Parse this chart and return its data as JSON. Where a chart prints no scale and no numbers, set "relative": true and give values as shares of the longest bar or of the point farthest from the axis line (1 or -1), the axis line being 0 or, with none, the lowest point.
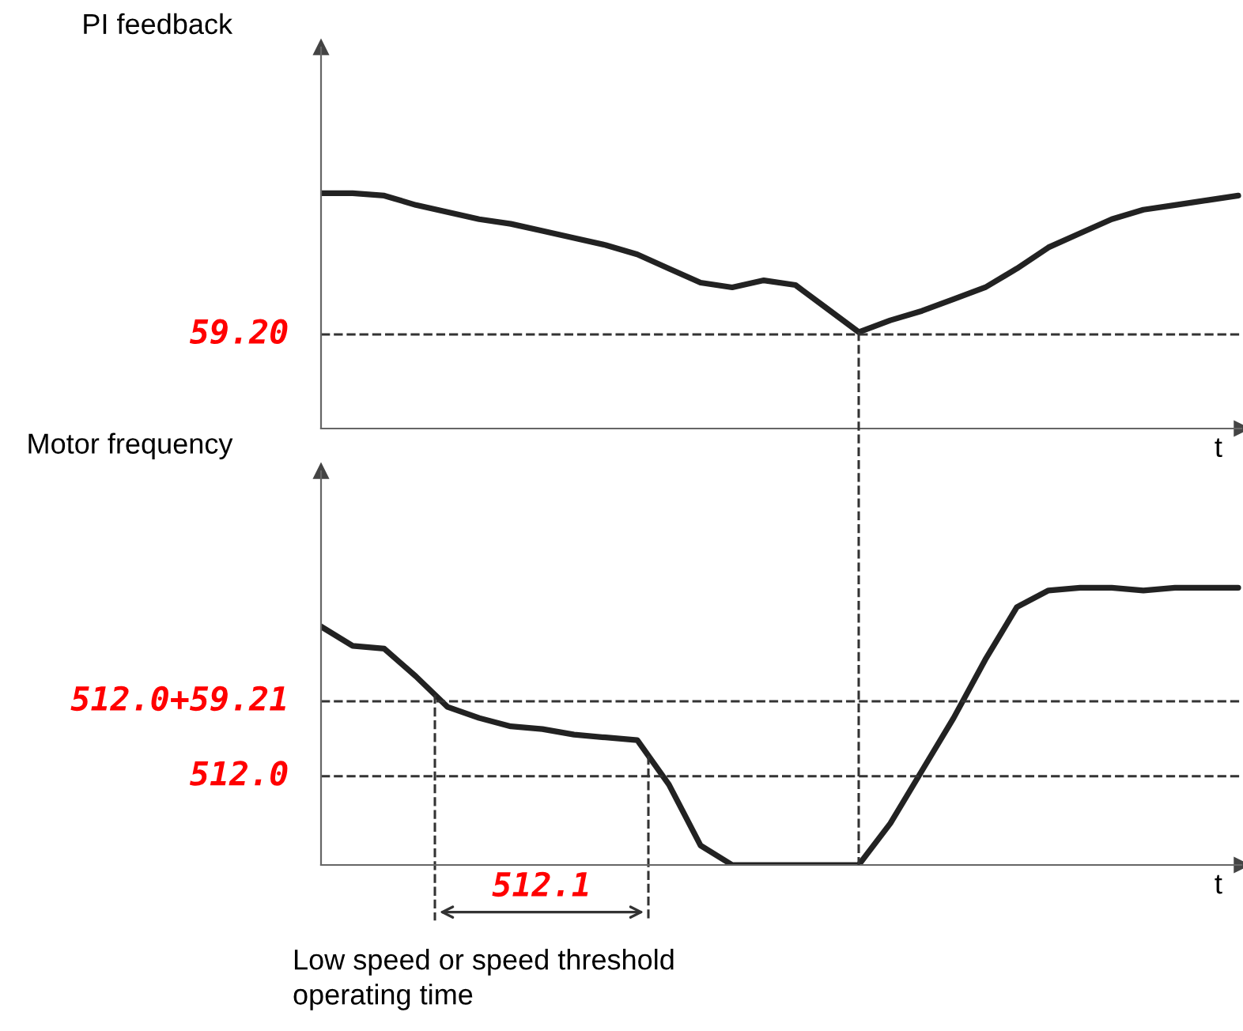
{
  "chart_data": [
    {
      "type": "line",
      "relative": true,
      "ylabel": "PI feedback",
      "xlabel": "t",
      "marker": "none",
      "line_style": "solid",
      "categories": [
        null,
        null,
        null,
        null,
        null,
        null,
        null,
        null,
        null,
        null,
        null,
        null,
        null,
        null,
        null,
        null,
        null,
        null,
        null,
        null,
        null,
        null,
        null,
        null,
        null,
        null,
        null,
        null,
        null,
        null
      ],
      "series": [
        {
          "color": "#222222",
          "values": [
            1.0,
            1.0,
            0.99,
            0.95,
            0.92,
            0.89,
            0.87,
            0.84,
            0.81,
            0.78,
            0.74,
            0.68,
            0.62,
            0.6,
            0.63,
            0.61,
            0.51,
            0.41,
            0.46,
            0.5,
            0.55,
            0.6,
            0.68,
            0.77,
            0.83,
            0.89,
            0.93,
            0.95,
            0.97,
            0.99
          ]
        }
      ],
      "ref_lines": [
        {
          "axis": "y",
          "value": 0.4,
          "color": "#333333",
          "line_style": "dashed"
        }
      ],
      "annotations": [
        "59.20"
      ]
    },
    {
      "type": "line",
      "relative": true,
      "ylabel": "Motor frequency",
      "xlabel": "t",
      "marker": "none",
      "line_style": "solid",
      "categories": [
        null,
        null,
        null,
        null,
        null,
        null,
        null,
        null,
        null,
        null,
        null,
        null,
        null,
        null,
        null,
        null,
        null,
        null,
        null,
        null,
        null,
        null,
        null,
        null,
        null,
        null,
        null,
        null,
        null,
        null
      ],
      "series": [
        {
          "color": "#222222",
          "values": [
            0.86,
            0.79,
            0.78,
            0.68,
            0.57,
            0.53,
            0.5,
            0.49,
            0.47,
            0.46,
            0.45,
            0.29,
            0.07,
            0,
            0,
            0,
            0,
            0,
            0.15,
            0.34,
            0.53,
            0.74,
            0.93,
            0.99,
            1,
            1,
            0.99,
            1,
            1,
            1
          ]
        }
      ],
      "ref_lines": [
        {
          "axis": "y",
          "value": 0.59,
          "color": "#333333",
          "line_style": "dashed"
        },
        {
          "axis": "y",
          "value": 0.32,
          "color": "#333333",
          "line_style": "dashed"
        }
      ],
      "annotations": [
        "512.0+59.21",
        "512.0",
        "512.1",
        "Low speed or speed threshold\noperating time"
      ]
    }
  ]
}
